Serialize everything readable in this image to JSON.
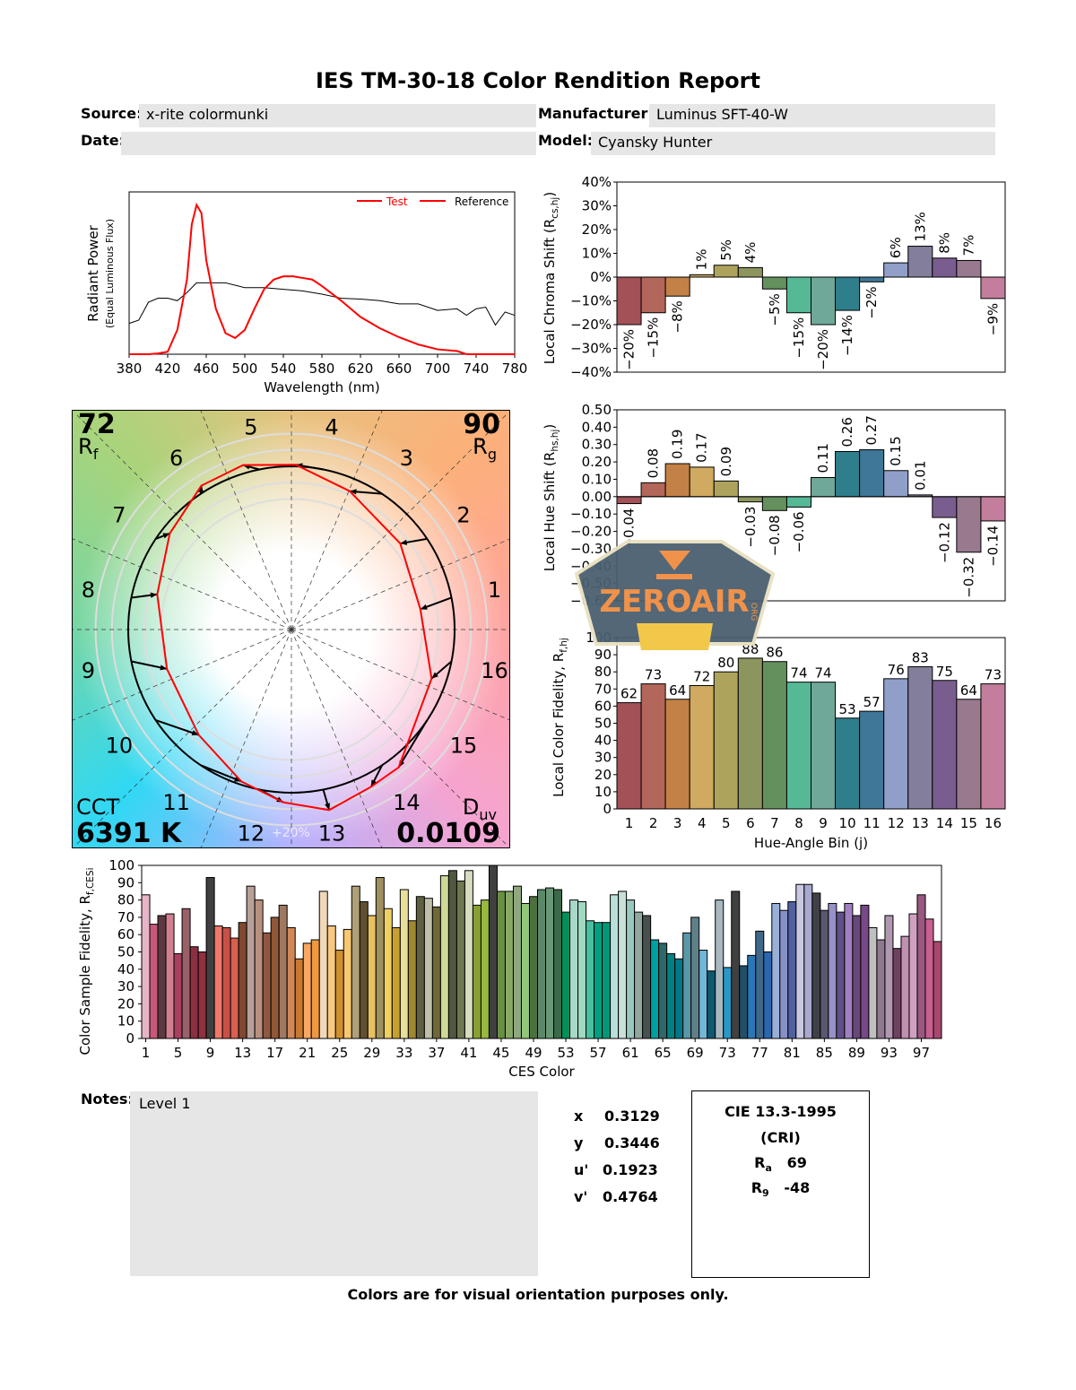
{
  "header": {
    "title": "IES TM-30-18 Color Rendition Report",
    "source_label": "Source:",
    "source": "x-rite colormunki",
    "manufacturer_label": "Manufacturer:",
    "manufacturer": "Luminus SFT-40-W",
    "date_label": "Date:",
    "date": "",
    "model_label": "Model:",
    "model": "Cyansky Hunter"
  },
  "spectrum": {
    "type": "line",
    "xlabel": "Wavelength (nm)",
    "ylabel": "Radiant Power",
    "ylabel2": "(Equal Luminous Flux)",
    "xlim": [
      380,
      780
    ],
    "ylim": [
      0,
      1
    ],
    "xticks": [
      380,
      420,
      460,
      500,
      540,
      580,
      620,
      660,
      700,
      740,
      780
    ],
    "legend": [
      "Test",
      "Reference"
    ],
    "legend_placement": "top-right",
    "colors": {
      "test": "#ff0000",
      "reference": "#000000"
    },
    "test": {
      "x": [
        380,
        400,
        410,
        420,
        430,
        440,
        445,
        450,
        455,
        460,
        470,
        480,
        490,
        500,
        510,
        520,
        530,
        540,
        550,
        560,
        570,
        580,
        600,
        620,
        640,
        660,
        680,
        700,
        720,
        730,
        780
      ],
      "y": [
        0,
        0,
        0.005,
        0.015,
        0.15,
        0.46,
        0.8,
        0.92,
        0.87,
        0.58,
        0.28,
        0.13,
        0.1,
        0.15,
        0.28,
        0.4,
        0.46,
        0.48,
        0.48,
        0.47,
        0.46,
        0.42,
        0.33,
        0.23,
        0.16,
        0.105,
        0.06,
        0.03,
        0.02,
        0,
        0
      ]
    },
    "reference": {
      "x": [
        380,
        390,
        400,
        410,
        420,
        430,
        440,
        450,
        460,
        480,
        500,
        520,
        540,
        560,
        580,
        600,
        620,
        640,
        660,
        680,
        700,
        720,
        730,
        740,
        750,
        760,
        770,
        780
      ],
      "y": [
        0.19,
        0.21,
        0.32,
        0.345,
        0.345,
        0.33,
        0.38,
        0.44,
        0.44,
        0.44,
        0.41,
        0.41,
        0.4,
        0.39,
        0.37,
        0.345,
        0.34,
        0.33,
        0.31,
        0.31,
        0.27,
        0.28,
        0.24,
        0.28,
        0.29,
        0.18,
        0.26,
        0.24
      ]
    }
  },
  "vector_graphic": {
    "rf_value": "72",
    "rf_label": "R",
    "rf_sub": "f",
    "rg_value": "90",
    "rg_label": "R",
    "rg_sub": "g",
    "cct_label": "CCT",
    "cct_value": "6391 K",
    "duv_label": "D",
    "duv_sub": "uv",
    "duv_value": "0.0109",
    "ring_label": "+20%",
    "bins": [
      "1",
      "2",
      "3",
      "4",
      "5",
      "6",
      "7",
      "8",
      "9",
      "10",
      "11",
      "12",
      "13",
      "14",
      "15",
      "16"
    ],
    "colors": {
      "test": "#ff0000",
      "reference": "#000000"
    }
  },
  "chart_data": [
    {
      "type": "bar",
      "name": "chroma",
      "ylabel": "Local Chroma Shift (R",
      "ylabel_sub": "cs,hj",
      "ylabel_end": ")",
      "ylim": [
        -40,
        40
      ],
      "yticks": [
        "40%",
        "30%",
        "20%",
        "10%",
        "0%",
        "−10%",
        "−20%",
        "−30%",
        "−40%"
      ],
      "categories": [
        "1",
        "2",
        "3",
        "4",
        "5",
        "6",
        "7",
        "8",
        "9",
        "10",
        "11",
        "12",
        "13",
        "14",
        "15",
        "16"
      ],
      "values": [
        -20,
        -15,
        -8,
        1,
        5,
        4,
        -5,
        -15,
        -20,
        -14,
        -2,
        6,
        13,
        8,
        7,
        -9
      ],
      "unit": "%"
    },
    {
      "type": "bar",
      "name": "hue",
      "ylabel": "Local Hue Shift (R",
      "ylabel_sub": "hs,hj",
      "ylabel_end": ")",
      "ylim": [
        -0.6,
        0.5
      ],
      "yticks": [
        "0.50",
        "0.40",
        "0.30",
        "0.20",
        "0.10",
        "0.00",
        "−0.10",
        "−0.20",
        "−0.30",
        "−0.40",
        "−0.50",
        "−0.60"
      ],
      "categories": [
        "1",
        "2",
        "3",
        "4",
        "5",
        "6",
        "7",
        "8",
        "9",
        "10",
        "11",
        "12",
        "13",
        "14",
        "15",
        "16"
      ],
      "values": [
        -0.04,
        0.08,
        0.19,
        0.17,
        0.09,
        -0.03,
        -0.08,
        -0.06,
        0.11,
        0.26,
        0.27,
        0.15,
        0.01,
        -0.12,
        -0.32,
        -0.14
      ]
    },
    {
      "type": "bar",
      "name": "fidelity",
      "ylabel": "Local Color Fidelity, R",
      "ylabel_sub": "f,hj",
      "xlabel": "Hue-Angle Bin (j)",
      "ylim": [
        0,
        100
      ],
      "yticks": [
        "100",
        "90",
        "80",
        "70",
        "60",
        "50",
        "40",
        "30",
        "20",
        "10",
        "0"
      ],
      "categories": [
        "1",
        "2",
        "3",
        "4",
        "5",
        "6",
        "7",
        "8",
        "9",
        "10",
        "11",
        "12",
        "13",
        "14",
        "15",
        "16"
      ],
      "values": [
        62,
        73,
        64,
        72,
        80,
        88,
        86,
        74,
        74,
        53,
        57,
        76,
        83,
        75,
        64,
        73
      ]
    },
    {
      "type": "bar",
      "name": "ces",
      "ylabel": "Color Sample Fidelity, R",
      "ylabel_sub": "f,CESi",
      "xlabel": "CES Color",
      "ylim": [
        0,
        100
      ],
      "yticks": [
        "100",
        "90",
        "80",
        "70",
        "60",
        "50",
        "40",
        "30",
        "20",
        "10",
        "0"
      ],
      "xticks": [
        "1",
        "5",
        "9",
        "13",
        "17",
        "21",
        "25",
        "29",
        "33",
        "37",
        "41",
        "45",
        "49",
        "53",
        "57",
        "61",
        "65",
        "69",
        "73",
        "77",
        "81",
        "85",
        "89",
        "93",
        "97"
      ],
      "values": [
        83,
        66,
        71,
        72,
        49,
        75,
        53,
        50,
        93,
        65,
        64,
        58,
        67,
        88,
        80,
        61,
        70,
        77,
        64,
        46,
        55,
        57,
        85,
        65,
        51,
        63,
        88,
        79,
        71,
        93,
        75,
        64,
        86,
        68,
        82,
        81,
        76,
        94,
        97,
        91,
        97,
        77,
        80,
        100,
        85,
        85,
        88,
        78,
        82,
        86,
        87,
        86,
        73,
        80,
        79,
        68,
        67,
        67,
        83,
        85,
        80,
        73,
        71,
        57,
        55,
        49,
        46,
        61,
        70,
        51,
        39,
        80,
        41,
        85,
        42,
        48,
        62,
        50,
        78,
        74,
        79,
        89,
        89,
        84,
        74,
        78,
        73,
        78,
        71,
        77,
        64,
        57,
        71,
        52,
        59,
        72,
        83,
        69,
        56
      ],
      "colors": [
        "#e8b4c8",
        "#c8587a",
        "#5a3a40",
        "#d08090",
        "#a84060",
        "#9a6068",
        "#8a3040",
        "#903040",
        "#404040",
        "#f07868",
        "#c85048",
        "#d86050",
        "#804830",
        "#b8a098",
        "#b89080",
        "#905840",
        "#905838",
        "#a07860",
        "#d08858",
        "#c87830",
        "#f8a860",
        "#f09840",
        "#f0d8b8",
        "#f8c880",
        "#d09030",
        "#f8c870",
        "#b0a078",
        "#605030",
        "#e8c060",
        "#a09060",
        "#f0d060",
        "#c8a030",
        "#e8e098",
        "#a08830",
        "#606040",
        "#c0c0a8",
        "#706838",
        "#d0d898",
        "#505840",
        "#707850",
        "#d8dcc0",
        "#88a030",
        "#98b840",
        "#404040",
        "#689040",
        "#88a868",
        "#90a880",
        "#90c878",
        "#4c7040",
        "#5a8868",
        "#6a9878",
        "#3a6a48",
        "#00905a",
        "#a8d8c8",
        "#a0d8c0",
        "#48c0a0",
        "#00a080",
        "#009878",
        "#b8e0d8",
        "#c8e0d8",
        "#98c8c0",
        "#90a8a0",
        "#485050",
        "#00a0a0",
        "#306868",
        "#008080",
        "#007888",
        "#5898a8",
        "#608088",
        "#70b8d8",
        "#105870",
        "#a8b8c0",
        "#2898c8",
        "#404040",
        "#205068",
        "#2878b8",
        "#406888",
        "#2868b0",
        "#98b0d8",
        "#8890c8",
        "#5060a0",
        "#c8c8e0",
        "#a8a8d0",
        "#404048",
        "#585870",
        "#9890c8",
        "#605088",
        "#a080c0",
        "#684878",
        "#784888",
        "#c0c0c0",
        "#907890",
        "#b098b0",
        "#704060",
        "#c090b0",
        "#d0a0c0",
        "#985880",
        "#c86090",
        "#a84870"
      ]
    }
  ],
  "bin_colors": [
    "#a35057",
    "#b3665a",
    "#c38147",
    "#cfaa60",
    "#ada35c",
    "#8c955d",
    "#64905e",
    "#55b996",
    "#6fa898",
    "#2e7f8b",
    "#3e7797",
    "#8f9fc8",
    "#827e9c",
    "#7a5d8f",
    "#98798e",
    "#c27e9c"
  ],
  "watermark": {
    "text": "ZEROAIR",
    "suffix": "ORG"
  },
  "notes": {
    "label": "Notes:",
    "text": "Level 1"
  },
  "chromaticity": [
    {
      "label": "x",
      "value": "0.3129"
    },
    {
      "label": "y",
      "value": "0.3446"
    },
    {
      "label": "u'",
      "value": "0.1923"
    },
    {
      "label": "v'",
      "value": "0.4764"
    }
  ],
  "cri": {
    "title": "CIE 13.3-1995",
    "subtitle": "(CRI)",
    "ra_label": "R",
    "ra_sub": "a",
    "ra_value": "69",
    "r9_label": "R",
    "r9_sub": "9",
    "r9_value": "-48"
  },
  "footer": "Colors are for visual orientation purposes only."
}
